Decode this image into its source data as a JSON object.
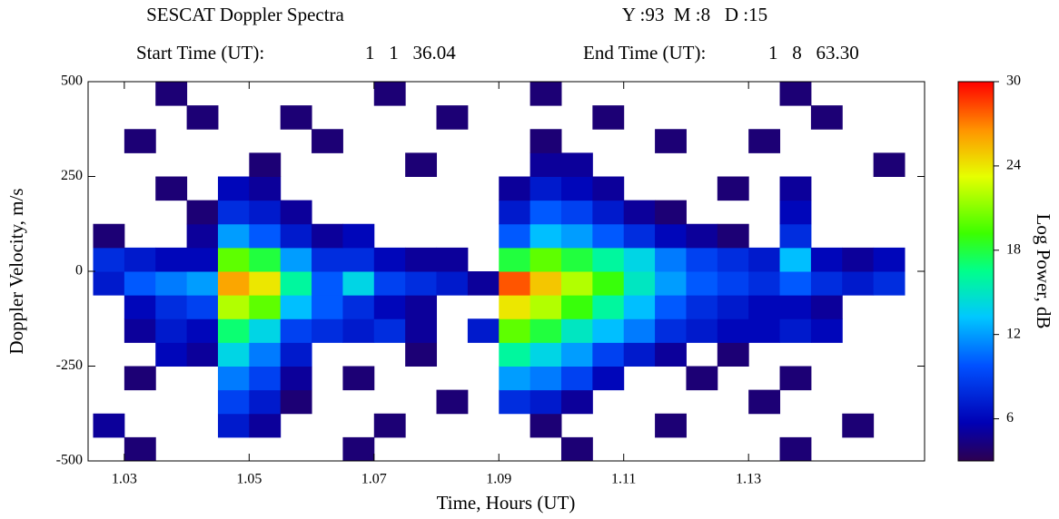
{
  "chart_data": {
    "type": "heatmap",
    "title": "SESCAT Doppler Spectra",
    "date": "Y :93  M :8   D :15",
    "start_label": "Start Time (UT):",
    "start_value": "1   1   36.04",
    "end_label": "End Time (UT):",
    "end_value": "1   8   63.30",
    "x_label": "Time, Hours (UT)",
    "y_label": "Doppler Velocity, m/s",
    "colorbar_label": "Log Power, dB",
    "xlim": [
      1.0242,
      1.1582
    ],
    "xticks": [
      1.03,
      1.05,
      1.07,
      1.09,
      1.11,
      1.13
    ],
    "ylim": [
      -500,
      500
    ],
    "yticks": [
      -500,
      -250,
      0,
      250,
      500
    ],
    "zlim": [
      3,
      30
    ],
    "zticks": [
      6,
      12,
      18,
      24,
      30
    ],
    "colormap": "jet",
    "x_edges": [
      1.025,
      1.03,
      1.035,
      1.04,
      1.045,
      1.05,
      1.055,
      1.06,
      1.065,
      1.07,
      1.075,
      1.08,
      1.085,
      1.09,
      1.095,
      1.1,
      1.105,
      1.11,
      1.115,
      1.12,
      1.125,
      1.13,
      1.135,
      1.14,
      1.145,
      1.15,
      1.155
    ],
    "y_edges": [
      -500,
      -437.5,
      -375,
      -312.5,
      -250,
      -187.5,
      -125,
      -62.5,
      0,
      62.5,
      125,
      187.5,
      250,
      312.5,
      375,
      437.5,
      500
    ],
    "z": [
      [
        null,
        4,
        null,
        null,
        null,
        null,
        null,
        null,
        4,
        null,
        null,
        null,
        null,
        null,
        null,
        4,
        null,
        null,
        null,
        null,
        null,
        null,
        4,
        null,
        null,
        null
      ],
      [
        5,
        null,
        null,
        null,
        7,
        5,
        null,
        null,
        null,
        4,
        null,
        null,
        null,
        null,
        4,
        null,
        null,
        null,
        4,
        null,
        null,
        null,
        null,
        null,
        4,
        null
      ],
      [
        null,
        null,
        null,
        null,
        9,
        7,
        4,
        null,
        null,
        null,
        null,
        4,
        null,
        8,
        7,
        5,
        null,
        null,
        null,
        null,
        null,
        4,
        null,
        null,
        null,
        null
      ],
      [
        null,
        4,
        null,
        null,
        11,
        9,
        5,
        null,
        4,
        null,
        null,
        null,
        null,
        12,
        11,
        9,
        6,
        null,
        null,
        4,
        null,
        null,
        4,
        null,
        null,
        null
      ],
      [
        null,
        null,
        6,
        5,
        14,
        11,
        7,
        null,
        null,
        null,
        4,
        null,
        null,
        16,
        14,
        12,
        9,
        7,
        5,
        null,
        4,
        null,
        null,
        null,
        null,
        null
      ],
      [
        null,
        5,
        7,
        6,
        17,
        14,
        9,
        8,
        7,
        8,
        5,
        null,
        7,
        20,
        18,
        15,
        13,
        11,
        8,
        7,
        6,
        6,
        7,
        6,
        null,
        null
      ],
      [
        null,
        6,
        8,
        9,
        22,
        20,
        13,
        10,
        8,
        6,
        5,
        null,
        null,
        24,
        22,
        19,
        16,
        13,
        10,
        8,
        7,
        6,
        6,
        5,
        null,
        null
      ],
      [
        7,
        10,
        11,
        12,
        26,
        24,
        16,
        10,
        14,
        9,
        8,
        7,
        5,
        28,
        25,
        22,
        19,
        15,
        12,
        10,
        9,
        8,
        10,
        8,
        7,
        8
      ],
      [
        8,
        7,
        6,
        6,
        20,
        18,
        12,
        8,
        8,
        6,
        5,
        5,
        null,
        18,
        20,
        18,
        16,
        14,
        11,
        9,
        8,
        7,
        13,
        6,
        5,
        6
      ],
      [
        4,
        null,
        null,
        5,
        12,
        10,
        7,
        5,
        6,
        null,
        null,
        null,
        null,
        10,
        13,
        12,
        10,
        8,
        6,
        5,
        4,
        null,
        8,
        null,
        null,
        null
      ],
      [
        null,
        null,
        null,
        4,
        8,
        7,
        5,
        null,
        null,
        null,
        null,
        null,
        null,
        7,
        10,
        9,
        7,
        5,
        4,
        null,
        null,
        null,
        6,
        null,
        null,
        null
      ],
      [
        null,
        null,
        4,
        null,
        6,
        5,
        null,
        null,
        null,
        null,
        null,
        null,
        null,
        5,
        7,
        6,
        5,
        null,
        null,
        null,
        4,
        null,
        5,
        null,
        null,
        null
      ],
      [
        null,
        null,
        null,
        null,
        null,
        4,
        null,
        null,
        null,
        null,
        4,
        null,
        null,
        null,
        5,
        5,
        null,
        null,
        null,
        null,
        null,
        null,
        null,
        null,
        null,
        4
      ],
      [
        null,
        4,
        null,
        null,
        null,
        null,
        null,
        4,
        null,
        null,
        null,
        null,
        null,
        null,
        4,
        null,
        null,
        null,
        4,
        null,
        null,
        4,
        null,
        null,
        null,
        null
      ],
      [
        null,
        null,
        null,
        4,
        null,
        null,
        4,
        null,
        null,
        null,
        null,
        4,
        null,
        null,
        null,
        null,
        4,
        null,
        null,
        null,
        null,
        null,
        null,
        4,
        null,
        null
      ],
      [
        null,
        null,
        4,
        null,
        null,
        null,
        null,
        null,
        null,
        4,
        null,
        null,
        null,
        null,
        4,
        null,
        null,
        null,
        null,
        null,
        null,
        null,
        4,
        null,
        null,
        null
      ]
    ]
  }
}
